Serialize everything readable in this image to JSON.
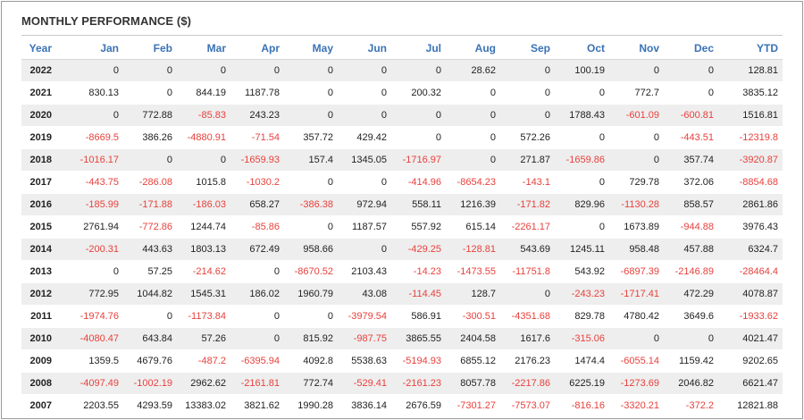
{
  "title": "MONTHLY PERFORMANCE ($)",
  "colors": {
    "header": "#3a72b5",
    "negative": "#e8413c",
    "stripe": "#eeeeee"
  },
  "columns": [
    "Year",
    "Jan",
    "Feb",
    "Mar",
    "Apr",
    "May",
    "Jun",
    "Jul",
    "Aug",
    "Sep",
    "Oct",
    "Nov",
    "Dec",
    "YTD"
  ],
  "rows": [
    [
      "2022",
      "0",
      "0",
      "0",
      "0",
      "0",
      "0",
      "0",
      "28.62",
      "0",
      "100.19",
      "0",
      "0",
      "128.81"
    ],
    [
      "2021",
      "830.13",
      "0",
      "844.19",
      "1187.78",
      "0",
      "0",
      "200.32",
      "0",
      "0",
      "0",
      "772.7",
      "0",
      "3835.12"
    ],
    [
      "2020",
      "0",
      "772.88",
      "-85.83",
      "243.23",
      "0",
      "0",
      "0",
      "0",
      "0",
      "1788.43",
      "-601.09",
      "-600.81",
      "1516.81"
    ],
    [
      "2019",
      "-8669.5",
      "386.26",
      "-4880.91",
      "-71.54",
      "357.72",
      "429.42",
      "0",
      "0",
      "572.26",
      "0",
      "0",
      "-443.51",
      "-12319.8"
    ],
    [
      "2018",
      "-1016.17",
      "0",
      "0",
      "-1659.93",
      "157.4",
      "1345.05",
      "-1716.97",
      "0",
      "271.87",
      "-1659.86",
      "0",
      "357.74",
      "-3920.87"
    ],
    [
      "2017",
      "-443.75",
      "-286.08",
      "1015.8",
      "-1030.2",
      "0",
      "0",
      "-414.96",
      "-8654.23",
      "-143.1",
      "0",
      "729.78",
      "372.06",
      "-8854.68"
    ],
    [
      "2016",
      "-185.99",
      "-171.88",
      "-186.03",
      "658.27",
      "-386.38",
      "972.94",
      "558.11",
      "1216.39",
      "-171.82",
      "829.96",
      "-1130.28",
      "858.57",
      "2861.86"
    ],
    [
      "2015",
      "2761.94",
      "-772.86",
      "1244.74",
      "-85.86",
      "0",
      "1187.57",
      "557.92",
      "615.14",
      "-2261.17",
      "0",
      "1673.89",
      "-944.88",
      "3976.43"
    ],
    [
      "2014",
      "-200.31",
      "443.63",
      "1803.13",
      "672.49",
      "958.66",
      "0",
      "-429.25",
      "-128.81",
      "543.69",
      "1245.11",
      "958.48",
      "457.88",
      "6324.7"
    ],
    [
      "2013",
      "0",
      "57.25",
      "-214.62",
      "0",
      "-8670.52",
      "2103.43",
      "-14.23",
      "-1473.55",
      "-11751.8",
      "543.92",
      "-6897.39",
      "-2146.89",
      "-28464.4"
    ],
    [
      "2012",
      "772.95",
      "1044.82",
      "1545.31",
      "186.02",
      "1960.79",
      "43.08",
      "-114.45",
      "128.7",
      "0",
      "-243.23",
      "-1717.41",
      "472.29",
      "4078.87"
    ],
    [
      "2011",
      "-1974.76",
      "0",
      "-1173.84",
      "0",
      "0",
      "-3979.54",
      "586.91",
      "-300.51",
      "-4351.68",
      "829.78",
      "4780.42",
      "3649.6",
      "-1933.62"
    ],
    [
      "2010",
      "-4080.47",
      "643.84",
      "57.26",
      "0",
      "815.92",
      "-987.75",
      "3865.55",
      "2404.58",
      "1617.6",
      "-315.06",
      "0",
      "0",
      "4021.47"
    ],
    [
      "2009",
      "1359.5",
      "4679.76",
      "-487.2",
      "-6395.94",
      "4092.8",
      "5538.63",
      "-5194.93",
      "6855.12",
      "2176.23",
      "1474.4",
      "-6055.14",
      "1159.42",
      "9202.65"
    ],
    [
      "2008",
      "-4097.49",
      "-1002.19",
      "2962.62",
      "-2161.81",
      "772.74",
      "-529.41",
      "-2161.23",
      "8057.78",
      "-2217.86",
      "6225.19",
      "-1273.69",
      "2046.82",
      "6621.47"
    ],
    [
      "2007",
      "2203.55",
      "4293.59",
      "13383.02",
      "3821.62",
      "1990.28",
      "3836.14",
      "2676.59",
      "-7301.27",
      "-7573.07",
      "-816.16",
      "-3320.21",
      "-372.2",
      "12821.88"
    ]
  ]
}
